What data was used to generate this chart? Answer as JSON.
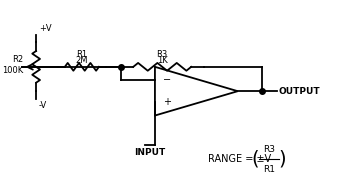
{
  "bg_color": "#ffffff",
  "line_color": "#000000",
  "text_color": "#000000",
  "figsize": [
    3.39,
    1.96
  ],
  "dpi": 100,
  "labels": {
    "plus_v": "+V",
    "minus_v": "-V",
    "r1": "R1",
    "r1_val": "2M",
    "r2": "R2",
    "r2_val": "100K",
    "r3": "R3",
    "r3_val": "1K",
    "output": "OUTPUT",
    "input": "INPUT",
    "range_text": "RANGE = ±V",
    "range_frac_num": "R3",
    "range_frac_den": "R1"
  }
}
